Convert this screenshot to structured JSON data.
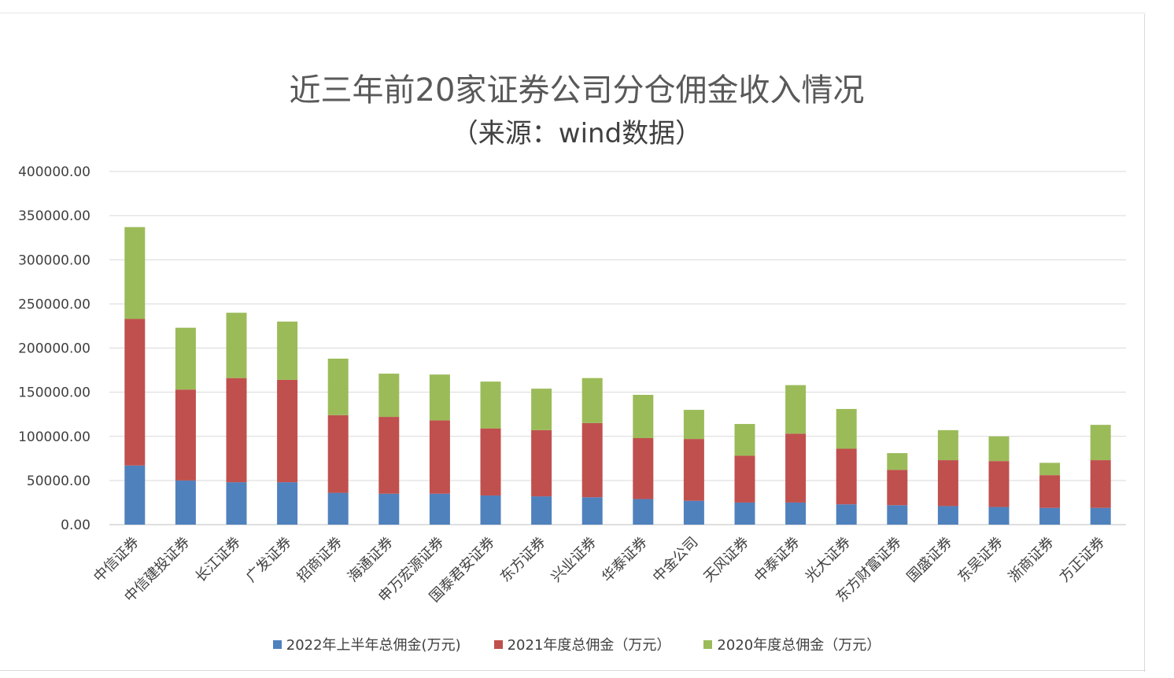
{
  "chart_data": {
    "type": "bar",
    "stacked": true,
    "title": "近三年前20家证券公司分仓佣金收入情况",
    "subtitle": "（来源：wind数据）",
    "categories": [
      "中信证券",
      "中信建投证券",
      "长江证券",
      "广发证券",
      "招商证券",
      "海通证券",
      "申万宏源证券",
      "国泰君安证券",
      "东方证券",
      "兴业证券",
      "华泰证券",
      "中金公司",
      "天风证券",
      "中泰证券",
      "光大证券",
      "东方财富证券",
      "国盛证券",
      "东吴证券",
      "浙商证券",
      "方正证券"
    ],
    "series": [
      {
        "name": "2022年上半年总佣金(万元)",
        "color": "#4F81BD",
        "values": [
          67000,
          50000,
          48000,
          48000,
          36000,
          35000,
          35000,
          33000,
          32000,
          31000,
          29000,
          27000,
          25000,
          25000,
          23000,
          22000,
          21000,
          20000,
          19000,
          19000
        ]
      },
      {
        "name": "2021年度总佣金（万元）",
        "color": "#C0504D",
        "values": [
          166000,
          103000,
          118000,
          116000,
          88000,
          87000,
          83000,
          76000,
          75000,
          84000,
          69000,
          70000,
          53000,
          78000,
          63000,
          40000,
          52000,
          52000,
          37000,
          54000
        ]
      },
      {
        "name": "2020年度总佣金（万元）",
        "color": "#9BBB59",
        "values": [
          104000,
          70000,
          74000,
          66000,
          64000,
          49000,
          52000,
          53000,
          47000,
          51000,
          49000,
          33000,
          36000,
          55000,
          45000,
          19000,
          34000,
          28000,
          14000,
          40000
        ]
      }
    ],
    "yticks": [
      "400000.00",
      "350000.00",
      "300000.00",
      "250000.00",
      "200000.00",
      "150000.00",
      "100000.00",
      "50000.00",
      "0.00"
    ],
    "ylim": [
      0,
      400000
    ],
    "grid": true,
    "legend_position": "bottom"
  }
}
